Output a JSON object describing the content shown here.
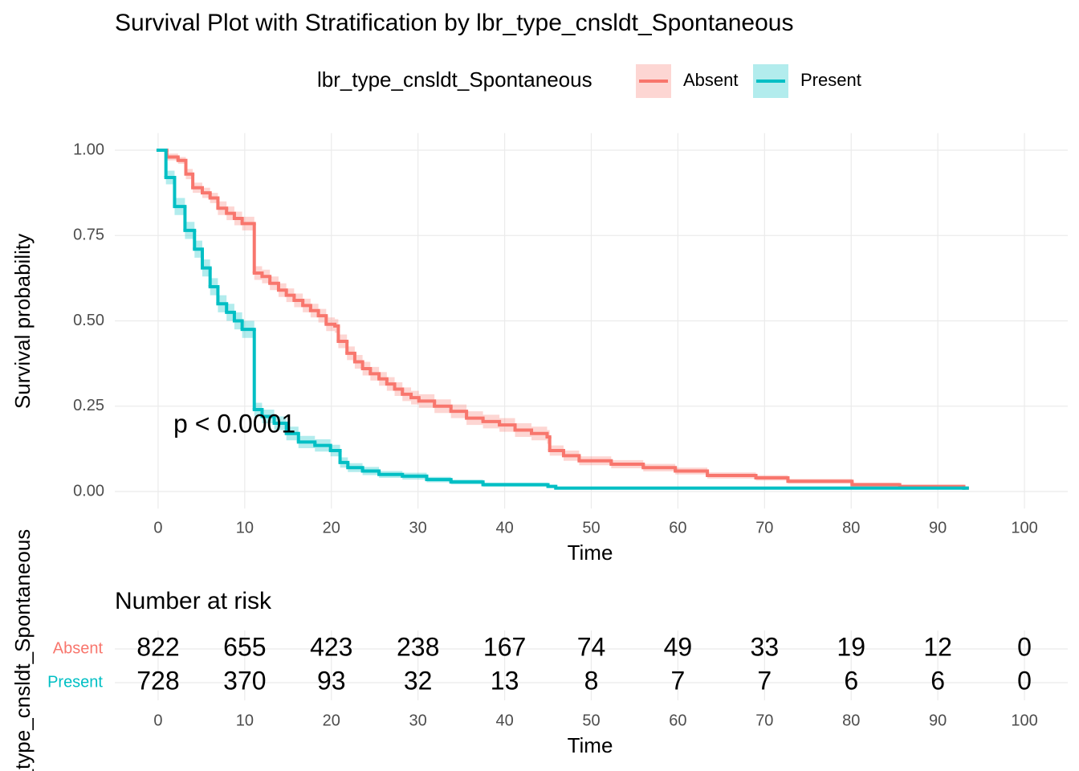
{
  "chart_data": [
    {
      "type": "step",
      "title": "Survival Plot with Stratification by lbr_type_cnsldt_Spontaneous",
      "legend_title": "lbr_type_cnsldt_Spontaneous",
      "legend_position": "top",
      "xlabel": "Time",
      "ylabel": "Survival probability",
      "annotation": "p < 0.0001",
      "xlim": [
        -5,
        105
      ],
      "ylim": [
        -0.05,
        1.05
      ],
      "xticks": [
        0,
        10,
        20,
        30,
        40,
        50,
        60,
        70,
        80,
        90,
        100
      ],
      "yticks": [
        {
          "value": 0,
          "label": "0.00"
        },
        {
          "value": 0.25,
          "label": "0.25"
        },
        {
          "value": 0.5,
          "label": "0.50"
        },
        {
          "value": 0.75,
          "label": "0.75"
        },
        {
          "value": 1,
          "label": "1.00"
        }
      ],
      "grid": true,
      "series": [
        {
          "name": "Absent",
          "color": "#F8766D",
          "x": [
            0,
            1,
            2.3,
            3.2,
            4,
            5.1,
            6,
            6.9,
            7.9,
            8.8,
            9.7,
            11.1,
            12,
            12.9,
            13.9,
            14.8,
            15.7,
            16.7,
            17.6,
            18.5,
            19.4,
            20.4,
            20.8,
            21.8,
            22.7,
            23.6,
            24.5,
            25.5,
            26.4,
            27.3,
            28.2,
            29.2,
            30.1,
            31.9,
            33.8,
            35.6,
            37.5,
            39.4,
            41.2,
            43.1,
            44.9,
            45.2,
            46.8,
            48.6,
            52.3,
            56,
            59.7,
            63.4,
            69,
            72.7,
            80.1,
            85.6,
            93
          ],
          "values": [
            1.0,
            0.98,
            0.97,
            0.93,
            0.89,
            0.875,
            0.86,
            0.83,
            0.815,
            0.8,
            0.785,
            0.64,
            0.63,
            0.61,
            0.59,
            0.575,
            0.56,
            0.545,
            0.53,
            0.515,
            0.49,
            0.485,
            0.44,
            0.405,
            0.38,
            0.36,
            0.345,
            0.33,
            0.315,
            0.3,
            0.285,
            0.275,
            0.265,
            0.25,
            0.235,
            0.215,
            0.205,
            0.195,
            0.18,
            0.17,
            0.16,
            0.12,
            0.105,
            0.09,
            0.08,
            0.07,
            0.06,
            0.047,
            0.04,
            0.03,
            0.02,
            0.015,
            0.01
          ],
          "lower": [
            1.0,
            0.97,
            0.96,
            0.915,
            0.875,
            0.86,
            0.845,
            0.81,
            0.795,
            0.78,
            0.765,
            0.62,
            0.61,
            0.59,
            0.57,
            0.555,
            0.54,
            0.525,
            0.51,
            0.495,
            0.47,
            0.465,
            0.42,
            0.385,
            0.36,
            0.34,
            0.325,
            0.31,
            0.295,
            0.28,
            0.265,
            0.255,
            0.245,
            0.23,
            0.215,
            0.195,
            0.185,
            0.175,
            0.16,
            0.15,
            0.14,
            0.105,
            0.09,
            0.077,
            0.068,
            0.059,
            0.05,
            0.038,
            0.032,
            0.023,
            0.014,
            0.01,
            0.006
          ],
          "upper": [
            1.0,
            0.99,
            0.98,
            0.945,
            0.905,
            0.89,
            0.875,
            0.85,
            0.835,
            0.82,
            0.805,
            0.66,
            0.65,
            0.63,
            0.61,
            0.595,
            0.58,
            0.565,
            0.55,
            0.535,
            0.51,
            0.505,
            0.46,
            0.425,
            0.4,
            0.38,
            0.365,
            0.35,
            0.335,
            0.32,
            0.305,
            0.295,
            0.285,
            0.27,
            0.255,
            0.235,
            0.225,
            0.215,
            0.2,
            0.19,
            0.18,
            0.135,
            0.12,
            0.103,
            0.092,
            0.081,
            0.07,
            0.056,
            0.048,
            0.037,
            0.026,
            0.02,
            0.014
          ]
        },
        {
          "name": "Present",
          "color": "#00BFC4",
          "x": [
            0,
            0.9,
            1.9,
            3.1,
            4.2,
            5.1,
            6,
            6.9,
            7.9,
            8.8,
            9.7,
            11.1,
            12,
            13.4,
            14.8,
            16.2,
            18.1,
            19.9,
            21,
            21.9,
            23.6,
            25.5,
            28.2,
            31,
            33.8,
            37.5,
            45,
            45.9,
            93
          ],
          "values": [
            1.0,
            0.92,
            0.835,
            0.765,
            0.71,
            0.655,
            0.6,
            0.55,
            0.525,
            0.5,
            0.475,
            0.24,
            0.22,
            0.2,
            0.17,
            0.145,
            0.135,
            0.12,
            0.085,
            0.07,
            0.06,
            0.05,
            0.045,
            0.035,
            0.028,
            0.02,
            0.015,
            0.01,
            0.01
          ],
          "lower": [
            1.0,
            0.9,
            0.81,
            0.74,
            0.685,
            0.63,
            0.575,
            0.525,
            0.5,
            0.475,
            0.45,
            0.22,
            0.2,
            0.18,
            0.15,
            0.127,
            0.117,
            0.103,
            0.07,
            0.057,
            0.048,
            0.04,
            0.035,
            0.027,
            0.021,
            0.014,
            0.01,
            0.006,
            0.006
          ],
          "upper": [
            1.0,
            0.94,
            0.86,
            0.79,
            0.735,
            0.68,
            0.625,
            0.575,
            0.55,
            0.525,
            0.5,
            0.26,
            0.24,
            0.22,
            0.19,
            0.163,
            0.153,
            0.137,
            0.1,
            0.083,
            0.072,
            0.06,
            0.055,
            0.043,
            0.035,
            0.026,
            0.02,
            0.014,
            0.014
          ]
        }
      ]
    },
    {
      "type": "risk_table",
      "title": "Number at risk",
      "xlabel": "Time",
      "ylabel": "lbr_type_cnsldt_Spontaneous",
      "xlim": [
        -5,
        105
      ],
      "xticks": [
        0,
        10,
        20,
        30,
        40,
        50,
        60,
        70,
        80,
        90,
        100
      ],
      "x": [
        0,
        10,
        20,
        30,
        40,
        50,
        60,
        70,
        80,
        90,
        100
      ],
      "series": [
        {
          "name": "Absent",
          "color": "#F8766D",
          "values": [
            822,
            655,
            423,
            238,
            167,
            74,
            49,
            33,
            19,
            12,
            0
          ]
        },
        {
          "name": "Present",
          "color": "#00BFC4",
          "values": [
            728,
            370,
            93,
            32,
            13,
            8,
            7,
            7,
            6,
            6,
            0
          ]
        }
      ]
    }
  ]
}
